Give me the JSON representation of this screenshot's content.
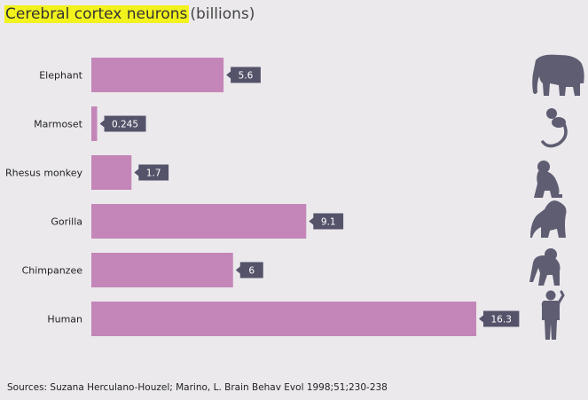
{
  "chart_data": {
    "type": "bar",
    "orientation": "horizontal",
    "title": "Cerebral cortex neurons",
    "unit": "(billions)",
    "categories": [
      "Elephant",
      "Marmoset",
      "Rhesus monkey",
      "Gorilla",
      "Chimpanzee",
      "Human"
    ],
    "values": [
      5.6,
      0.245,
      1.7,
      9.1,
      6,
      16.3
    ],
    "value_labels": [
      "5.6",
      "0.245",
      "1.7",
      "9.1",
      "6",
      "16.3"
    ],
    "xlim": [
      0,
      16.3
    ],
    "grid": false,
    "legend": "none",
    "icons": [
      "elephant-icon",
      "marmoset-icon",
      "rhesus-monkey-icon",
      "gorilla-icon",
      "chimpanzee-icon",
      "human-icon"
    ]
  },
  "source": "Sources: Suzana Herculano-Houzel; Marino, L. Brain Behav Evol 1998;51;230-238",
  "colors": {
    "background": "#ebe9ec",
    "bar": "#c486b8",
    "label_box": "#55536a",
    "icon": "#5f5d72",
    "title_highlight": "#f2f21c"
  }
}
